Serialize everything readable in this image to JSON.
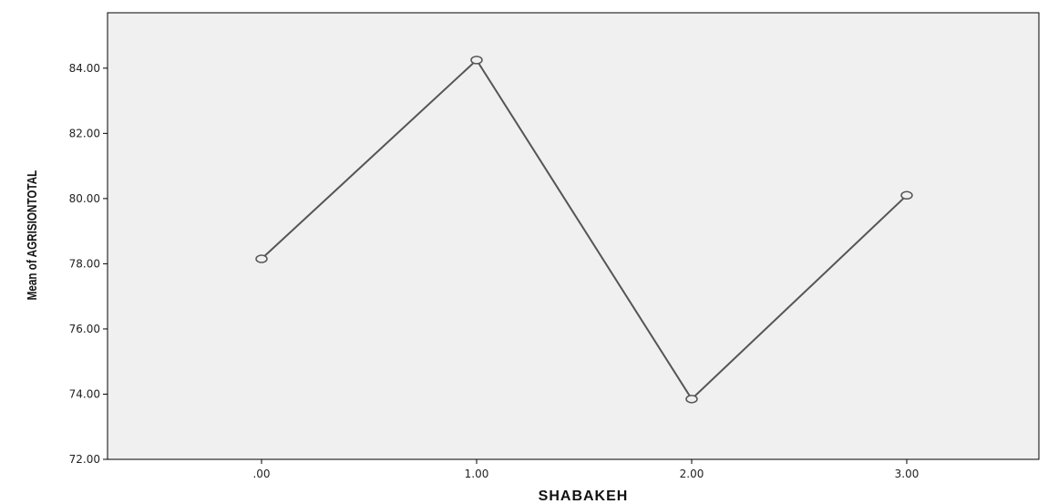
{
  "chart_data": {
    "type": "line",
    "xlabel": "SHABAKEH",
    "ylabel": "Mean of AGRISIONTOTAL",
    "categories": [
      ".00",
      "1.00",
      "2.00",
      "3.00"
    ],
    "values": [
      78.15,
      84.25,
      73.85,
      80.1
    ],
    "ylim": [
      72,
      85.7
    ],
    "y_ticks": [
      "72.00",
      "74.00",
      "76.00",
      "78.00",
      "80.00",
      "82.00",
      "84.00"
    ],
    "y_tick_values": [
      72,
      74,
      76,
      78,
      80,
      82,
      84
    ],
    "grid": false,
    "markers": "open-circle",
    "colors": {
      "plot_background": "#f0f0f0",
      "line": "#555555",
      "frame": "#000000"
    }
  }
}
